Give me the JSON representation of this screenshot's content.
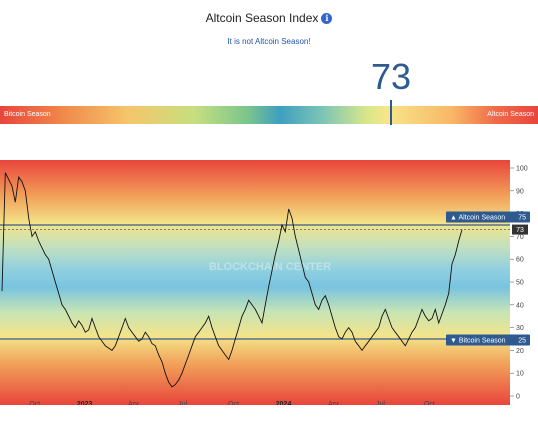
{
  "header": {
    "title": "Altcoin Season Index",
    "info_icon": "i",
    "status": "It is not Altcoin Season!",
    "value": "73"
  },
  "scale": {
    "left_label": "Bitcoin Season",
    "right_label": "Altcoin Season",
    "needle_value": 73
  },
  "chart_data": {
    "type": "line",
    "ylim": [
      0,
      100
    ],
    "yticks": [
      "100",
      "90",
      "80",
      "70",
      "60",
      "50",
      "40",
      "30",
      "20",
      "10",
      "0"
    ],
    "xticks": [
      "Oct",
      "2023",
      "Apr",
      "Jul",
      "Oct",
      "2024",
      "Apr",
      "Jul",
      "Oct"
    ],
    "xticks_bold": [
      "2023",
      "2024"
    ],
    "watermark": "BLOCKCHAIN CENTER",
    "thresholds": {
      "altcoin": {
        "value": 75,
        "label": "▲ Altcoin Season",
        "num": "75"
      },
      "bitcoin": {
        "value": 25,
        "label": "▼ Bitcoin Season",
        "num": "25"
      },
      "current": {
        "value": 73,
        "label": "73"
      }
    },
    "series": [
      {
        "values": [
          46,
          98,
          95,
          92,
          85,
          96,
          94,
          90,
          78,
          70,
          72,
          68,
          65,
          62,
          60,
          55,
          50,
          45,
          40,
          38,
          35,
          32,
          30,
          33,
          31,
          28,
          29,
          34,
          30,
          26,
          24,
          22,
          21,
          20,
          22,
          26,
          30,
          34,
          30,
          28,
          26,
          24,
          25,
          28,
          26,
          23,
          22,
          18,
          15,
          10,
          6,
          4,
          5,
          7,
          10,
          14,
          18,
          22,
          26,
          28,
          30,
          32,
          35,
          30,
          26,
          22,
          20,
          18,
          16,
          20,
          25,
          30,
          35,
          38,
          42,
          40,
          38,
          35,
          32,
          40,
          48,
          55,
          62,
          68,
          75,
          72,
          82,
          78,
          70,
          64,
          58,
          52,
          50,
          45,
          40,
          38,
          42,
          44,
          40,
          35,
          30,
          26,
          25,
          28,
          30,
          28,
          24,
          22,
          20,
          22,
          24,
          26,
          28,
          30,
          35,
          38,
          34,
          30,
          28,
          26,
          24,
          22,
          25,
          28,
          30,
          34,
          38,
          35,
          33,
          34,
          38,
          32,
          36,
          40,
          45,
          58,
          62,
          68,
          73
        ]
      }
    ]
  }
}
